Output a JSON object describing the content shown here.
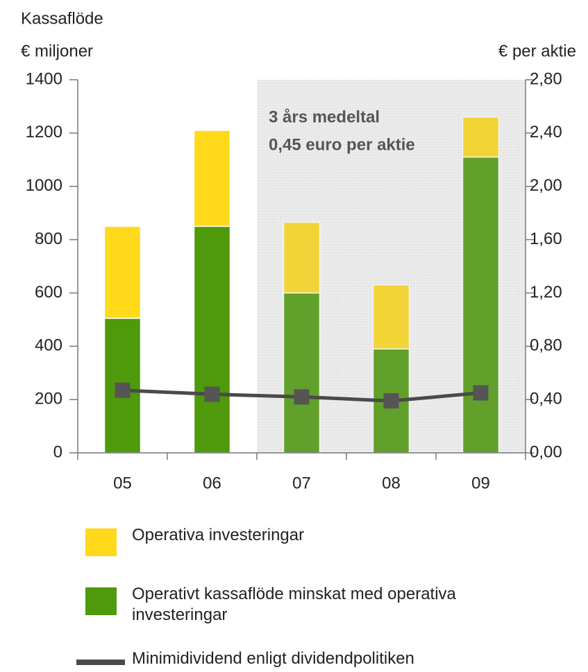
{
  "chart_data": {
    "type": "bar",
    "title": "Kassaflöde",
    "y_label": "€ miljoner",
    "y2_label": "€ per aktie",
    "annotations": [
      "3 års medeltal",
      "0,45 euro per aktie"
    ],
    "categories": [
      "05",
      "06",
      "07",
      "08",
      "09"
    ],
    "stacked": true,
    "series": [
      {
        "name": "Operativt kassaflöde minskat med operativa investeringar",
        "color": "#4e9a0a",
        "values": [
          505,
          850,
          600,
          390,
          1110
        ]
      },
      {
        "name": "Operativa investeringar",
        "color": "#ffd91a",
        "values": [
          345,
          360,
          265,
          240,
          150
        ]
      },
      {
        "name": "Minimidividend enligt dividendpolitiken",
        "type": "line",
        "axis": "y2",
        "color": "#4a4a4a",
        "values": [
          0.47,
          0.44,
          0.42,
          0.39,
          0.45
        ]
      }
    ],
    "ylim": [
      0,
      1400
    ],
    "yticks": [
      0,
      200,
      400,
      600,
      800,
      1000,
      1200,
      1400
    ],
    "y2lim": [
      0,
      2.8
    ],
    "y2ticks": [
      {
        "value": 0,
        "label": "0,00"
      },
      {
        "value": 0.4,
        "label": "0,40"
      },
      {
        "value": 0.8,
        "label": "0,80"
      },
      {
        "value": 1.2,
        "label": "1,20"
      },
      {
        "value": 1.6,
        "label": "1,60"
      },
      {
        "value": 2.0,
        "label": "2,00"
      },
      {
        "value": 2.4,
        "label": "2,40"
      },
      {
        "value": 2.8,
        "label": "2,80"
      }
    ]
  }
}
